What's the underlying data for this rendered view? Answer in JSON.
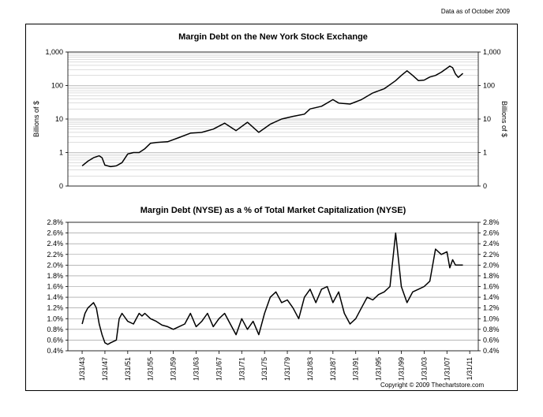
{
  "note": "Data as of October 2009",
  "copyright": "Copyright © 2009 Thechartstore.com",
  "chart_data": [
    {
      "type": "line",
      "title": "Margin Debt on the New York Stock Exchange",
      "ylabel_left": "Billions of $",
      "ylabel_right": "Billions of $",
      "yscale": "log",
      "ylim": [
        0.1,
        1000
      ],
      "y_ticks": [
        0.1,
        1,
        10,
        100,
        1000
      ],
      "y_tick_labels": [
        "0",
        "1",
        "10",
        "100",
        "1,000"
      ],
      "xlim": [
        1940.5,
        2012.5
      ],
      "grid": "horizontal",
      "line_color": "#000000",
      "series": [
        {
          "x": [
            1943,
            1944,
            1945,
            1946,
            1946.5,
            1947,
            1948,
            1949,
            1950,
            1951,
            1952,
            1953,
            1954,
            1955,
            1956,
            1958,
            1960,
            1962,
            1964,
            1966,
            1968,
            1970,
            1972,
            1974,
            1976,
            1978,
            1980,
            1982,
            1983,
            1985,
            1987,
            1988,
            1990,
            1992,
            1994,
            1996,
            1998,
            1999,
            2000,
            2001,
            2002,
            2003,
            2004,
            2005,
            2006,
            2007,
            2007.5,
            2008,
            2008.5,
            2009,
            2009.8
          ],
          "y": [
            0.4,
            0.55,
            0.7,
            0.8,
            0.7,
            0.42,
            0.38,
            0.4,
            0.5,
            0.9,
            1.0,
            1.0,
            1.3,
            1.9,
            2.0,
            2.1,
            2.8,
            3.8,
            4.0,
            5.0,
            7.5,
            4.5,
            8.0,
            4.0,
            7.0,
            10.0,
            12.0,
            14.0,
            20.0,
            24.0,
            38.0,
            30.0,
            28.0,
            38.0,
            60.0,
            80.0,
            140.0,
            200.0,
            275.0,
            200.0,
            140.0,
            145.0,
            180.0,
            200.0,
            250.0,
            330.0,
            380.0,
            340.0,
            220.0,
            175.0,
            230.0
          ]
        }
      ]
    },
    {
      "type": "line",
      "title": "Margin Debt (NYSE) as a % of Total Market Capitalization (NYSE)",
      "ylim": [
        0.4,
        2.8
      ],
      "y_ticks": [
        0.4,
        0.6,
        0.8,
        1.0,
        1.2,
        1.4,
        1.6,
        1.8,
        2.0,
        2.2,
        2.4,
        2.6,
        2.8
      ],
      "y_tick_labels": [
        "0.4%",
        "0.6%",
        "0.8%",
        "1.0%",
        "1.2%",
        "1.4%",
        "1.6%",
        "1.8%",
        "2.0%",
        "2.2%",
        "2.4%",
        "2.6%",
        "2.8%"
      ],
      "xlim": [
        1940.5,
        2012.5
      ],
      "x_ticks": [
        1943,
        1947,
        1951,
        1955,
        1959,
        1963,
        1967,
        1971,
        1975,
        1979,
        1983,
        1987,
        1991,
        1995,
        1999,
        2003,
        2007,
        2011
      ],
      "x_tick_labels": [
        "1/31/43",
        "1/31/47",
        "1/31/51",
        "1/31/55",
        "1/31/59",
        "1/31/63",
        "1/31/67",
        "1/31/71",
        "1/31/75",
        "1/31/79",
        "1/31/83",
        "1/31/87",
        "1/31/91",
        "1/31/95",
        "1/31/99",
        "1/31/03",
        "1/31/07",
        "1/31/11"
      ],
      "grid": "horizontal",
      "line_color": "#000000",
      "series": [
        {
          "x": [
            1943,
            1943.5,
            1944,
            1945,
            1945.5,
            1946,
            1946.5,
            1947,
            1947.5,
            1948,
            1949,
            1949.5,
            1950,
            1951,
            1952,
            1953,
            1953.5,
            1954,
            1955,
            1956,
            1957,
            1958,
            1959,
            1960,
            1961,
            1962,
            1963,
            1964,
            1965,
            1966,
            1967,
            1968,
            1969,
            1970,
            1971,
            1972,
            1973,
            1974,
            1975,
            1976,
            1977,
            1978,
            1979,
            1980,
            1981,
            1982,
            1983,
            1984,
            1985,
            1986,
            1987,
            1988,
            1989,
            1990,
            1991,
            1992,
            1993,
            1994,
            1995,
            1996,
            1997,
            1998,
            1999,
            2000,
            2000.5,
            2001,
            2002,
            2003,
            2004,
            2005,
            2006,
            2007,
            2007.5,
            2008,
            2008.5,
            2009,
            2009.8
          ],
          "y": [
            0.9,
            1.1,
            1.2,
            1.3,
            1.2,
            0.9,
            0.7,
            0.55,
            0.52,
            0.55,
            0.6,
            1.0,
            1.1,
            0.95,
            0.9,
            1.1,
            1.05,
            1.1,
            1.0,
            0.95,
            0.88,
            0.85,
            0.8,
            0.85,
            0.9,
            1.1,
            0.85,
            0.95,
            1.1,
            0.85,
            1.0,
            1.1,
            0.9,
            0.7,
            1.0,
            0.8,
            0.95,
            0.7,
            1.1,
            1.4,
            1.5,
            1.3,
            1.35,
            1.2,
            1.0,
            1.4,
            1.55,
            1.3,
            1.55,
            1.6,
            1.3,
            1.5,
            1.1,
            0.9,
            1.0,
            1.2,
            1.4,
            1.35,
            1.45,
            1.5,
            1.6,
            2.6,
            1.6,
            1.3,
            1.4,
            1.5,
            1.55,
            1.6,
            1.7,
            2.3,
            2.2,
            2.25,
            1.95,
            2.1,
            2.0,
            2.0,
            2.0
          ]
        }
      ]
    }
  ]
}
